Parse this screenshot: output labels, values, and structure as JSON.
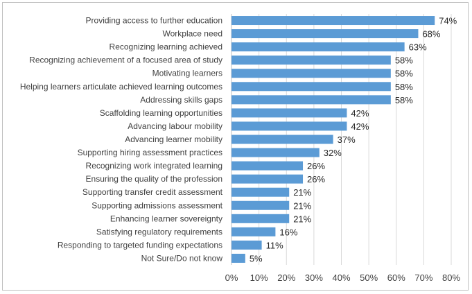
{
  "chart_data": {
    "type": "bar",
    "orientation": "horizontal",
    "categories": [
      "Providing access to further education",
      "Workplace need",
      "Recognizing learning achieved",
      "Recognizing achievement of a focused area of study",
      "Motivating learners",
      "Helping learners articulate achieved learning outcomes",
      "Addressing skills gaps",
      "Scaffolding learning opportunities",
      "Advancing labour mobility",
      "Advancing learner mobility",
      "Supporting hiring assessment practices",
      "Recognizing work integrated learning",
      "Ensuring the quality of the profession",
      "Supporting transfer credit assessment",
      "Supporting admissions assessment",
      "Enhancing learner sovereignty",
      "Satisfying regulatory requirements",
      "Responding to targeted funding expectations",
      "Not Sure/Do not know"
    ],
    "values": [
      74,
      68,
      63,
      58,
      58,
      58,
      58,
      42,
      42,
      37,
      32,
      26,
      26,
      21,
      21,
      21,
      16,
      11,
      5
    ],
    "value_labels": [
      "74%",
      "68%",
      "63%",
      "58%",
      "58%",
      "58%",
      "58%",
      "42%",
      "42%",
      "37%",
      "32%",
      "26%",
      "26%",
      "21%",
      "21%",
      "21%",
      "16%",
      "11%",
      "5%"
    ],
    "xlim": [
      0,
      80
    ],
    "xticks": [
      0,
      10,
      20,
      30,
      40,
      50,
      60,
      70,
      80
    ],
    "xtick_labels": [
      "0%",
      "10%",
      "20%",
      "30%",
      "40%",
      "50%",
      "60%",
      "70%",
      "80%"
    ],
    "grid": "vertical",
    "bar_color": "#5b9bd5",
    "title": "",
    "xlabel": "",
    "ylabel": ""
  }
}
